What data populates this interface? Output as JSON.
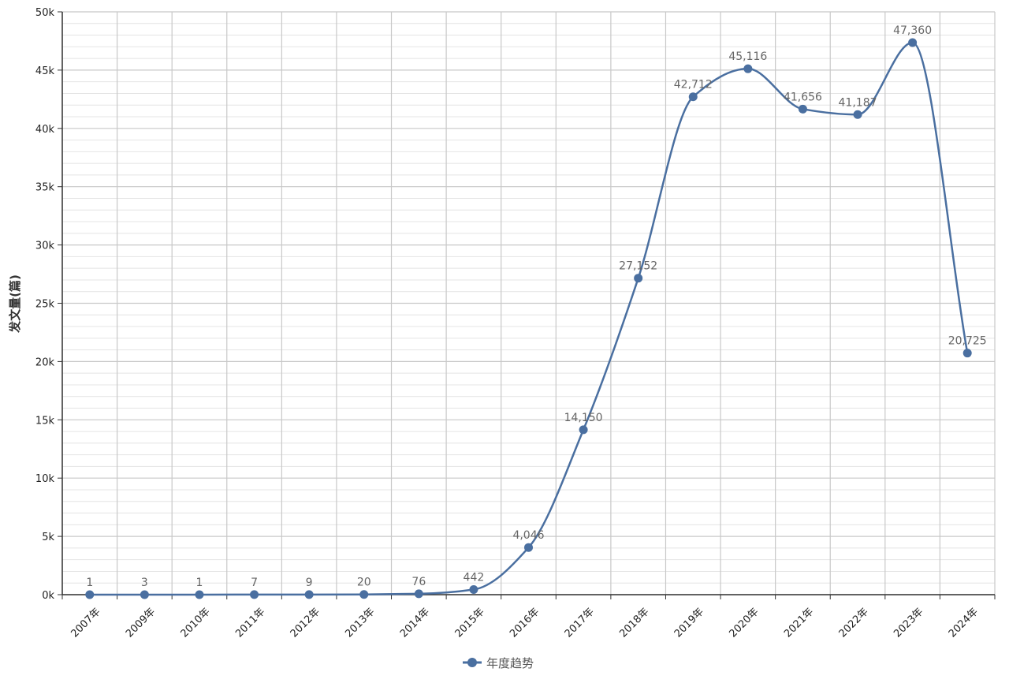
{
  "chart_data": {
    "type": "line",
    "title": "",
    "xlabel": "",
    "ylabel": "发文量(篇)",
    "categories": [
      "2007年",
      "2009年",
      "2010年",
      "2011年",
      "2012年",
      "2013年",
      "2014年",
      "2015年",
      "2016年",
      "2017年",
      "2018年",
      "2019年",
      "2020年",
      "2021年",
      "2022年",
      "2023年",
      "2024年"
    ],
    "series": [
      {
        "name": "年度趋势",
        "values": [
          1,
          3,
          1,
          7,
          9,
          20,
          76,
          442,
          4046,
          14150,
          27152,
          42712,
          45116,
          41656,
          41187,
          47360,
          20725
        ],
        "data_labels": [
          "1",
          "3",
          "1",
          "7",
          "9",
          "20",
          "76",
          "442",
          "4,046",
          "14,150",
          "27,152",
          "42,712",
          "45,116",
          "41,656",
          "41,187",
          "47,360",
          "20,725"
        ]
      }
    ],
    "ylim": [
      0,
      50000
    ],
    "yticks": [
      0,
      5000,
      10000,
      15000,
      20000,
      25000,
      30000,
      35000,
      40000,
      45000,
      50000
    ],
    "ytick_labels": [
      "0k",
      "5k",
      "10k",
      "15k",
      "20k",
      "25k",
      "30k",
      "35k",
      "40k",
      "45k",
      "50k"
    ],
    "grid": true,
    "legend_position": "bottom-center",
    "colors": {
      "series": "#4a6fa0",
      "grid_major": "#c8c8c8",
      "grid_minor": "#e4e4e4",
      "axis": "#333333"
    }
  }
}
